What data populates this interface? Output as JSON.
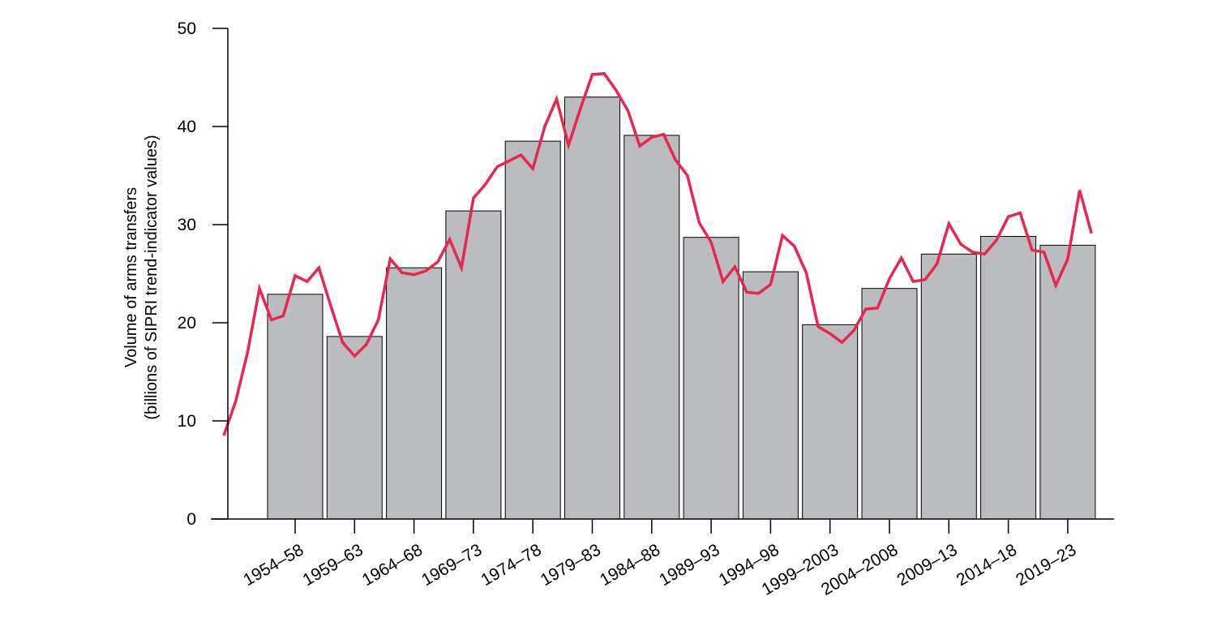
{
  "chart_data": {
    "type": "bar",
    "title": "",
    "ylabel_lines": [
      "Volume of arms transfers",
      "(billions of SIPRI trend-indicator values)"
    ],
    "xlabel": "",
    "ylim": [
      0,
      50
    ],
    "yticks": [
      0,
      10,
      20,
      30,
      40,
      50
    ],
    "grid": false,
    "categories": [
      "1954–58",
      "1959–63",
      "1964–68",
      "1969–73",
      "1974–78",
      "1979–83",
      "1984–88",
      "1989–93",
      "1994–98",
      "1999–2003",
      "2004–2008",
      "2009–13",
      "2014–18",
      "2019–23"
    ],
    "series": [
      {
        "type": "bar",
        "values": [
          22.9,
          18.6,
          25.6,
          31.4,
          38.5,
          43.0,
          39.1,
          28.7,
          25.2,
          19.8,
          23.5,
          27.0,
          28.8,
          27.9
        ]
      },
      {
        "type": "line",
        "x": [
          1950,
          1951,
          1952,
          1953,
          1954,
          1955,
          1956,
          1957,
          1958,
          1959,
          1960,
          1961,
          1962,
          1963,
          1964,
          1965,
          1966,
          1967,
          1968,
          1969,
          1970,
          1971,
          1972,
          1973,
          1974,
          1975,
          1976,
          1977,
          1978,
          1979,
          1980,
          1981,
          1982,
          1983,
          1984,
          1985,
          1986,
          1987,
          1988,
          1989,
          1990,
          1991,
          1992,
          1993,
          1994,
          1995,
          1996,
          1997,
          1998,
          1999,
          2000,
          2001,
          2002,
          2003,
          2004,
          2005,
          2006,
          2007,
          2008,
          2009,
          2010,
          2011,
          2012,
          2013,
          2014,
          2015,
          2016,
          2017,
          2018,
          2019,
          2020,
          2021,
          2022,
          2023
        ],
        "values": [
          8.5,
          12.0,
          17.0,
          23.5,
          20.3,
          20.7,
          24.8,
          24.2,
          25.6,
          21.7,
          18.0,
          16.6,
          17.8,
          20.3,
          26.5,
          25.1,
          24.9,
          25.3,
          26.2,
          28.5,
          25.6,
          32.7,
          34.1,
          35.9,
          36.5,
          37.1,
          35.7,
          40.0,
          42.8,
          38.1,
          41.8,
          45.3,
          45.4,
          43.7,
          41.6,
          38.0,
          38.9,
          39.2,
          36.6,
          35.0,
          30.2,
          28.2,
          24.2,
          25.7,
          23.1,
          23.0,
          23.9,
          28.9,
          27.8,
          25.1,
          19.6,
          18.9,
          18.0,
          19.2,
          21.4,
          21.5,
          24.5,
          26.6,
          24.2,
          24.4,
          26.0,
          30.1,
          28.0,
          27.2,
          27.0,
          28.4,
          30.8,
          31.2,
          27.4,
          27.2,
          23.8,
          26.5,
          33.5,
          29.1
        ],
        "color": "#e8264f"
      }
    ],
    "colors": {
      "bar_fill": "#bbbcbf",
      "bar_stroke": "#000000",
      "line": "#e8264f",
      "axis": "#000000"
    }
  }
}
